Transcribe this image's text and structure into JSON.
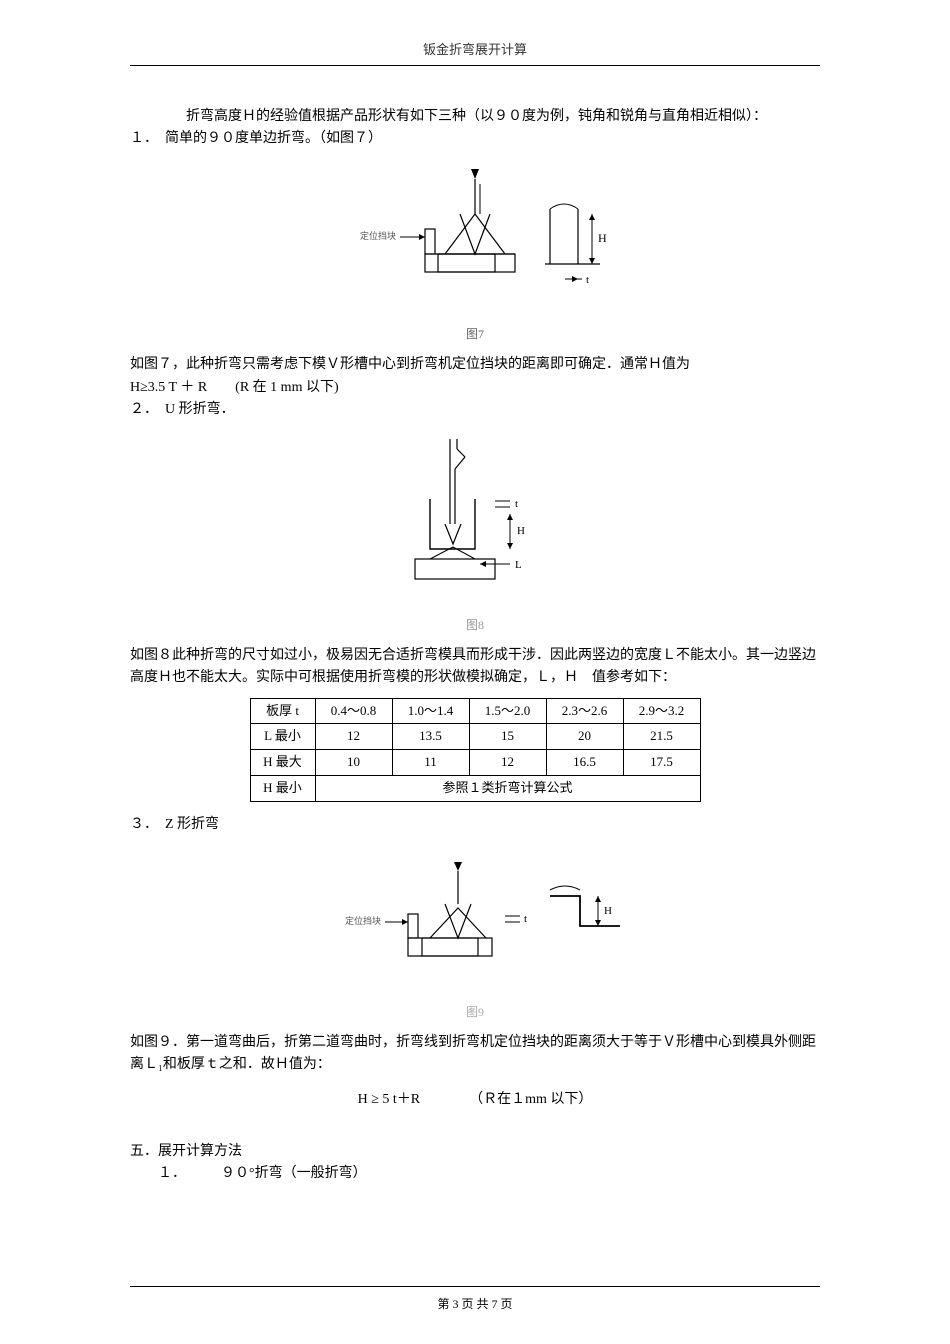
{
  "header": "钣金折弯展开计算",
  "p1a": "折弯高度Ｈ的经验值根据产品形状有如下三种（以９０度为例，钝角和锐角与直角相近相似）：",
  "item1": "１．　简单的９０度单边折弯。（如图７）",
  "fig7_label_left": "定位挡块",
  "fig7_cap": "图7",
  "p2": "如图７，此种折弯只需考虑下模Ｖ形槽中心到折弯机定位挡块的距离即可确定．通常Ｈ值为",
  "formula1": "H≥3.5 T ＋ R　　(R 在 1 mm 以下)",
  "item2": "２．　U 形折弯．",
  "fig8_cap": "图8",
  "p3": "如图８此种折弯的尺寸如过小，极易因无合适折弯模具而形成干涉．因此两竖边的宽度Ｌ不能太小。其一边竖边高度Ｈ也不能太大。实际中可根据使用折弯模的形状做模拟确定，Ｌ，Ｈ　值参考如下：",
  "table": {
    "rows": [
      {
        "head": "板厚 t",
        "cells": [
          "0.4～0.8",
          "1.0～1.4",
          "1.5～2.0",
          "2.3～2.6",
          "2.9～3.2"
        ]
      },
      {
        "head": "L 最小",
        "cells": [
          "12",
          "13.5",
          "15",
          "20",
          "21.5"
        ]
      },
      {
        "head": "H 最大",
        "cells": [
          "10",
          "11",
          "12",
          "16.5",
          "17.5"
        ]
      },
      {
        "head": "H 最小",
        "spanall": "参照１类折弯计算公式"
      }
    ]
  },
  "item3": "３．　Z 形折弯",
  "fig9_label_left": "定位挡块",
  "fig9_cap": "图9",
  "p4": "如图９．第一道弯曲后，折第二道弯曲时，折弯线到折弯机定位挡块的距离须大于等于Ｖ形槽中心到模具外侧距离Ｌ₁和板厚ｔ之和．故Ｈ值为：",
  "formula2": "H ≥ 5 t＋R　　　　（Ｒ在１mm 以下）",
  "sec5": "五．展开计算方法",
  "sec5_1": "１．　　　９０°折弯（一般折弯）",
  "footer": "第 3 页 共 7 页"
}
